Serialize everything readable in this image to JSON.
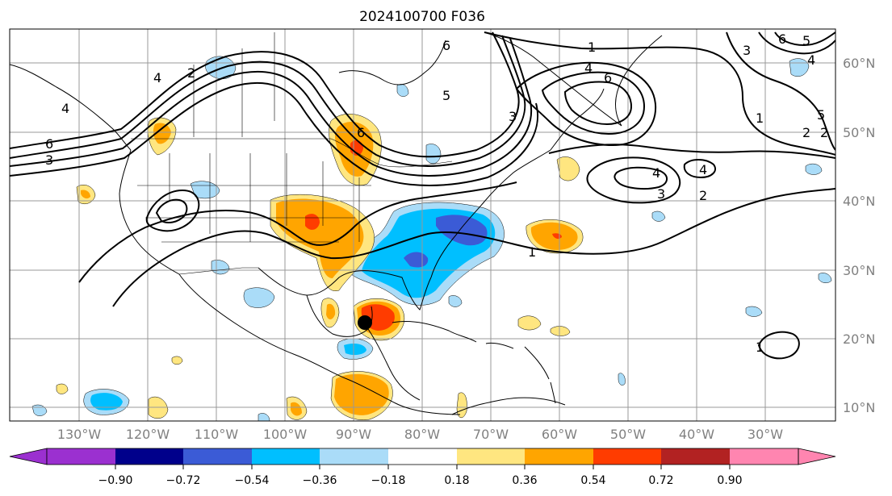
{
  "title": "2024100700 F036",
  "longitude_labels": [
    "130°W",
    "120°W",
    "110°W",
    "100°W",
    "90°W",
    "80°W",
    "70°W",
    "60°W",
    "50°W",
    "40°W",
    "30°W"
  ],
  "latitude_labels": [
    "60°N",
    "50°N",
    "40°N",
    "30°N",
    "20°N",
    "10°N"
  ],
  "colorbar": {
    "tick_labels": [
      "−0.90",
      "−0.72",
      "−0.54",
      "−0.36",
      "−0.18",
      "0.18",
      "0.36",
      "0.54",
      "0.72",
      "0.90"
    ],
    "colors": [
      "#9b30d0",
      "#00008b",
      "#3b5bd6",
      "#00bfff",
      "#aadcf8",
      "#ffffff",
      "#ffe680",
      "#ffa500",
      "#ff3c00",
      "#b22222",
      "#ff85b0"
    ]
  },
  "contour_labels": [
    "1",
    "4",
    "6",
    "6",
    "5",
    "5",
    "4",
    "2",
    "1",
    "2",
    "4",
    "6",
    "3",
    "3",
    "4",
    "3",
    "2",
    "1",
    "6",
    "3",
    "2",
    "1",
    "4",
    "6",
    "5",
    "4"
  ],
  "colors": {
    "coastline": "#000000",
    "contour": "#000000",
    "grid": "#999999",
    "marker": "#000000"
  }
}
